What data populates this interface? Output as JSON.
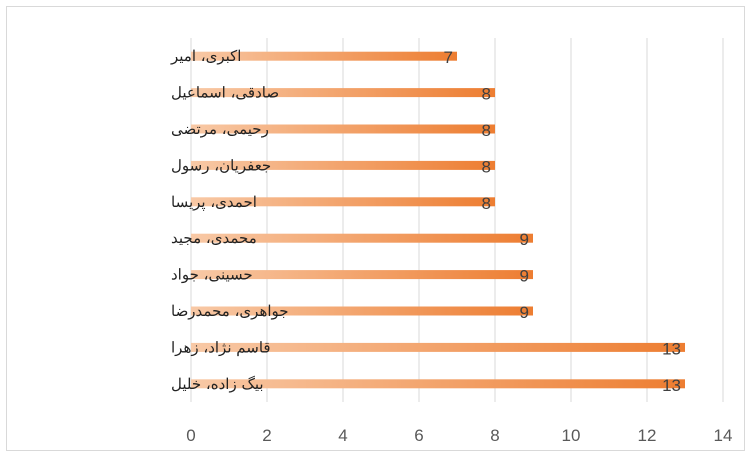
{
  "chart_data": {
    "type": "bar",
    "orientation": "horizontal",
    "categories": [
      "اکبری، امیر",
      "صادقی، اسماعیل",
      "رحیمی، مرتضی",
      "جعفریان، رسول",
      "احمدی، پریسا",
      "محمدی، مجید",
      "حسینی، جواد",
      "جواهری، محمدرضا",
      "قاسم نژاد، زهرا",
      "بیگ زاده، خلیل"
    ],
    "values": [
      7,
      8,
      8,
      8,
      8,
      9,
      9,
      9,
      13,
      13
    ],
    "xlim": [
      0,
      14
    ],
    "xticks": [
      0,
      2,
      4,
      6,
      8,
      10,
      12,
      14
    ],
    "xtick_labels": [
      "0",
      "2",
      "4",
      "6",
      "8",
      "10",
      "12",
      "14"
    ],
    "data_labels": [
      "7",
      "8",
      "8",
      "8",
      "8",
      "9",
      "9",
      "9",
      "13",
      "13"
    ],
    "grid": true,
    "bar_color_start": "#f8c9a6",
    "bar_color_end": "#ed7d31",
    "title": "",
    "xlabel": "",
    "ylabel": ""
  }
}
